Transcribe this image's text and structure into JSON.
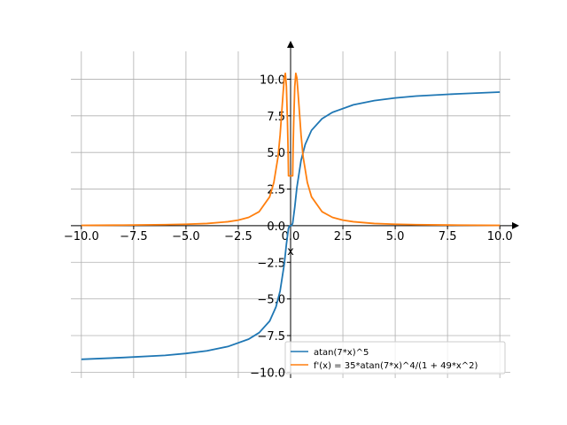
{
  "chart_data": {
    "type": "line",
    "title": "",
    "xlabel": "x",
    "ylabel": "",
    "xlim": [
      -10.5,
      10.5
    ],
    "ylim": [
      -10.4,
      11.9
    ],
    "grid": true,
    "legend_position": "bottom-right",
    "x_ticks": [
      -10,
      -7.5,
      -5,
      -2.5,
      0,
      2.5,
      5,
      7.5,
      10
    ],
    "x_tick_labels": [
      "−10.0",
      "−7.5",
      "−5.0",
      "−2.5",
      "0.0",
      "2.5",
      "5.0",
      "7.5",
      "10.0"
    ],
    "y_ticks": [
      -10,
      -7.5,
      -5,
      -2.5,
      0,
      2.5,
      5,
      7.5,
      10
    ],
    "y_tick_labels": [
      "−10.0",
      "−7.5",
      "−5.0",
      "−2.5",
      "0.0",
      "2.5",
      "5.0",
      "7.5",
      "10.0"
    ],
    "series": [
      {
        "name": "atan(7*x)^5",
        "color": "#1f77b4",
        "x": [
          -10,
          -8,
          -6,
          -5,
          -4,
          -3,
          -2,
          -1.5,
          -1,
          -0.7,
          -0.5,
          -0.3,
          -0.2,
          -0.1,
          -0.05,
          0,
          0.05,
          0.1,
          0.2,
          0.3,
          0.5,
          0.7,
          1,
          1.5,
          2,
          3,
          4,
          5,
          6,
          8,
          10
        ],
        "values": [
          -9.12,
          -9.0,
          -8.85,
          -8.72,
          -8.54,
          -8.25,
          -7.74,
          -7.3,
          -6.51,
          -5.55,
          -4.45,
          -2.6,
          -1.26,
          -0.17,
          -0.01,
          0.0,
          0.01,
          0.17,
          1.26,
          2.6,
          4.45,
          5.55,
          6.51,
          7.3,
          7.74,
          8.25,
          8.54,
          8.72,
          8.85,
          9.0,
          9.12
        ]
      },
      {
        "name": "f'(x) = 35*atan(7*x)^4/(1 + 49*x^2)",
        "color": "#ff7f0e",
        "x": [
          -10,
          -8,
          -6,
          -5,
          -4,
          -3,
          -2.5,
          -2,
          -1.5,
          -1,
          -0.8,
          -0.6,
          -0.5,
          -0.4,
          -0.35,
          -0.3,
          -0.25,
          -0.2,
          -0.15,
          -0.12,
          -0.1,
          -0.05,
          0,
          0.05,
          0.1,
          0.12,
          0.15,
          0.2,
          0.25,
          0.3,
          0.35,
          0.4,
          0.5,
          0.6,
          0.8,
          1,
          1.5,
          2,
          2.5,
          3,
          4,
          5,
          6,
          8,
          10
        ],
        "values": [
          0.02,
          0.04,
          0.07,
          0.1,
          0.15,
          0.27,
          0.38,
          0.57,
          0.96,
          1.97,
          2.95,
          4.7,
          6.2,
          8.2,
          9.2,
          10.1,
          10.4,
          9.5,
          7.1,
          5.2,
          3.4,
          3.4,
          3.4,
          3.4,
          3.4,
          5.2,
          7.1,
          9.5,
          10.4,
          10.1,
          9.2,
          8.2,
          6.2,
          4.7,
          2.95,
          1.97,
          0.96,
          0.57,
          0.38,
          0.27,
          0.15,
          0.1,
          0.07,
          0.04,
          0.02
        ]
      }
    ]
  }
}
